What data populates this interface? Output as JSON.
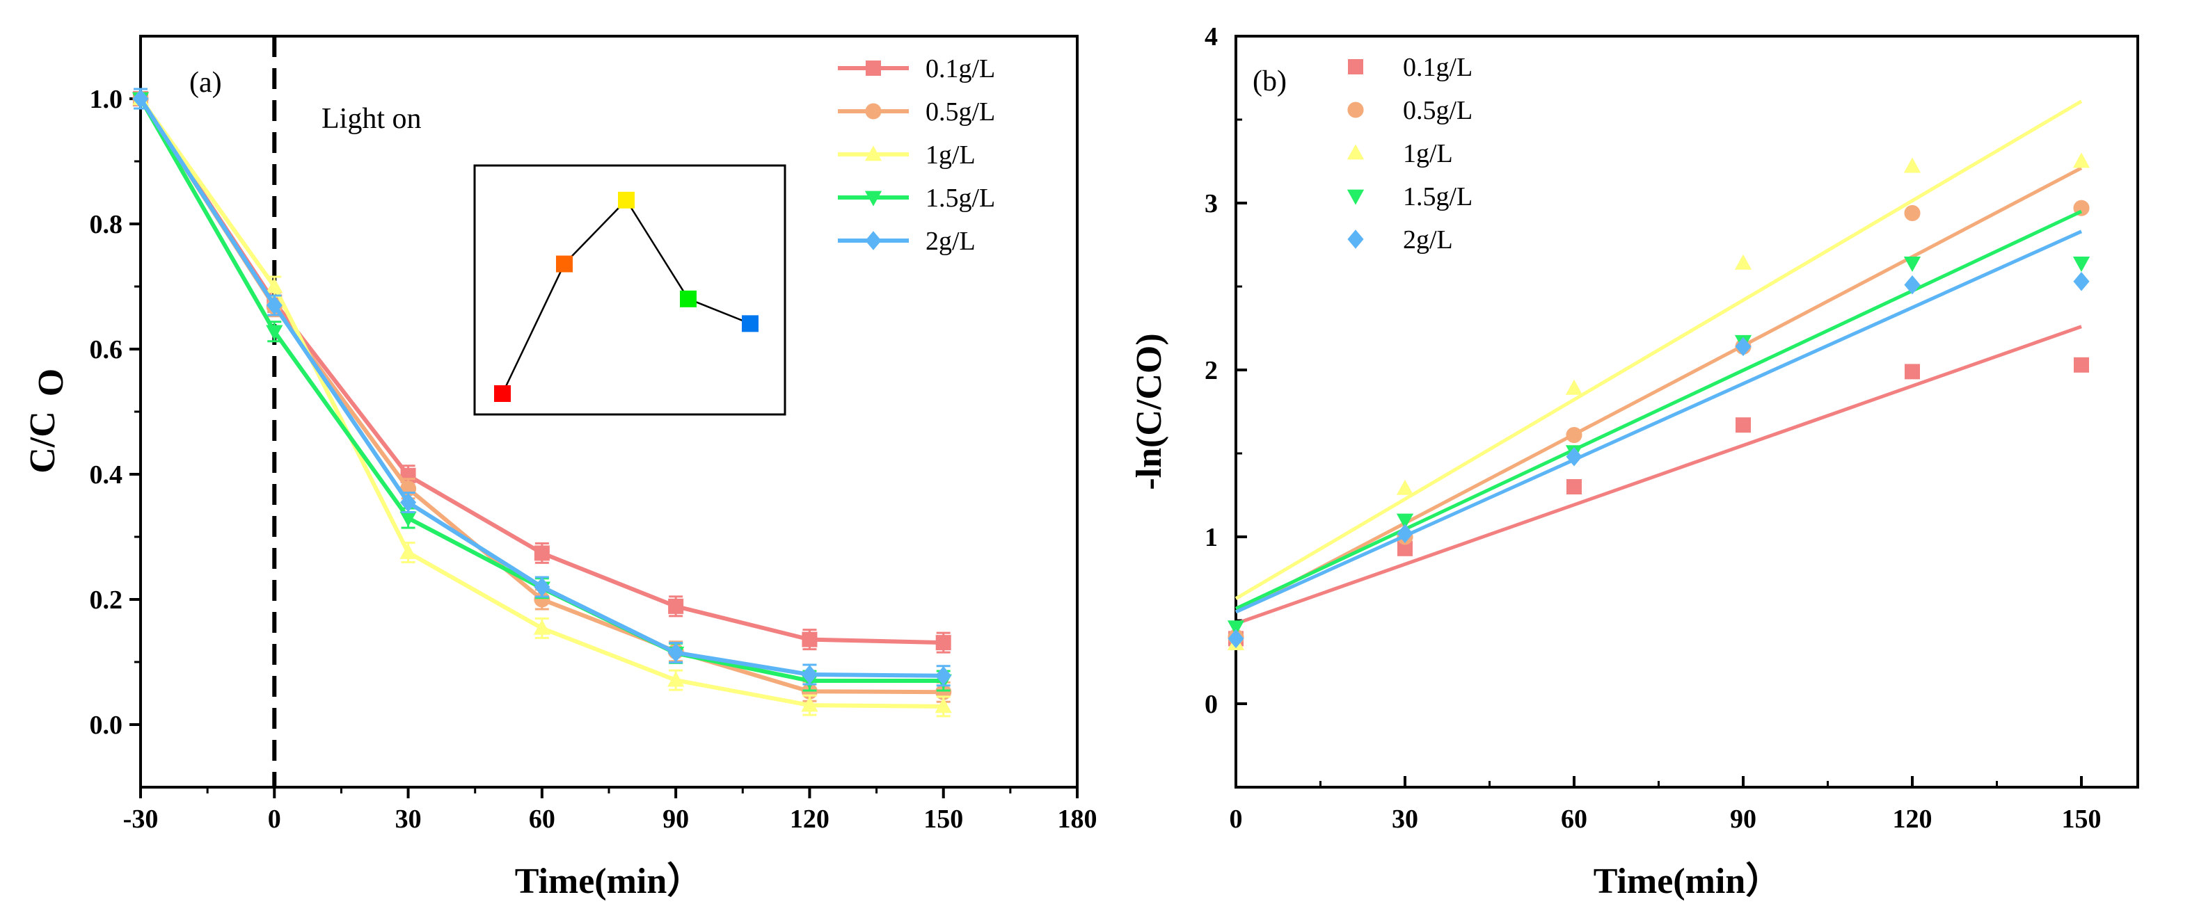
{
  "series_colors": [
    "#f28080",
    "#f5aa7a",
    "#ffff80",
    "#22ee66",
    "#5ab4f5"
  ],
  "chart_data": [
    {
      "type": "line",
      "panel_label": "(a)",
      "xlabel": "Time(min）",
      "ylabel_main": "C/C",
      "ylabel_sub": "O",
      "xlim": [
        -30,
        180
      ],
      "ylim": [
        -0.1,
        1.1
      ],
      "xticks": [
        -30,
        0,
        30,
        60,
        90,
        120,
        150,
        180
      ],
      "xtick_labels": [
        "-30",
        "0",
        "30",
        "60",
        "90",
        "120",
        "150",
        "180"
      ],
      "yticks": [
        0,
        0.2,
        0.4,
        0.6,
        0.8,
        1.0
      ],
      "ytick_labels": [
        "0.0",
        "0.2",
        "0.4",
        "0.6",
        "0.8",
        "1.0"
      ],
      "annotation": "Light on",
      "light_on_x": 0,
      "x": [
        -30,
        0,
        30,
        60,
        90,
        120,
        150
      ],
      "series": [
        {
          "name": "0.1g/L",
          "marker": "square",
          "values": [
            1.0,
            0.675,
            0.398,
            0.274,
            0.189,
            0.136,
            0.131
          ]
        },
        {
          "name": "0.5g/L",
          "marker": "circle",
          "values": [
            1.0,
            0.668,
            0.377,
            0.2,
            0.117,
            0.053,
            0.052
          ]
        },
        {
          "name": "1g/L",
          "marker": "triangle-up",
          "values": [
            1.0,
            0.7,
            0.275,
            0.154,
            0.071,
            0.031,
            0.029
          ]
        },
        {
          "name": "1.5g/L",
          "marker": "triangle-down",
          "values": [
            1.0,
            0.628,
            0.33,
            0.218,
            0.114,
            0.07,
            0.07
          ]
        },
        {
          "name": "2g/L",
          "marker": "diamond",
          "values": [
            1.0,
            0.67,
            0.355,
            0.22,
            0.115,
            0.08,
            0.078
          ]
        }
      ],
      "inset": {
        "type": "line",
        "values": [
          0.0,
          0.63,
          0.94,
          0.46,
          0.34
        ],
        "colors": [
          "#ff0000",
          "#ff6600",
          "#ffee00",
          "#00ee00",
          "#0077ee"
        ]
      }
    },
    {
      "type": "scatter",
      "panel_label": "(b)",
      "xlabel": "Time(min）",
      "ylabel": "-ln(C/CO)",
      "xlim": [
        0,
        160
      ],
      "ylim": [
        -0.5,
        4
      ],
      "xticks": [
        0,
        30,
        60,
        90,
        120,
        150
      ],
      "xtick_labels": [
        "0",
        "30",
        "60",
        "90",
        "120",
        "150"
      ],
      "yticks": [
        0,
        1,
        2,
        3,
        4
      ],
      "ytick_labels": [
        "0",
        "1",
        "2",
        "3",
        "4"
      ],
      "x": [
        0,
        30,
        60,
        90,
        120,
        150
      ],
      "series": [
        {
          "name": "0.1g/L",
          "marker": "square",
          "values": [
            0.39,
            0.93,
            1.3,
            1.67,
            1.99,
            2.03
          ],
          "fit": [
            0.48,
            2.26
          ]
        },
        {
          "name": "0.5g/L",
          "marker": "circle",
          "values": [
            0.4,
            1.0,
            1.61,
            2.14,
            2.94,
            2.97
          ],
          "fit": [
            0.55,
            3.21
          ]
        },
        {
          "name": "1g/L",
          "marker": "triangle-up",
          "values": [
            0.36,
            1.29,
            1.89,
            2.64,
            3.22,
            3.25
          ],
          "fit": [
            0.63,
            3.61
          ]
        },
        {
          "name": "1.5g/L",
          "marker": "triangle-down",
          "values": [
            0.46,
            1.1,
            1.51,
            2.17,
            2.64,
            2.64
          ],
          "fit": [
            0.57,
            2.95
          ]
        },
        {
          "name": "2g/L",
          "marker": "diamond",
          "values": [
            0.39,
            1.02,
            1.48,
            2.14,
            2.51,
            2.53
          ],
          "fit": [
            0.55,
            2.83
          ]
        }
      ]
    }
  ]
}
